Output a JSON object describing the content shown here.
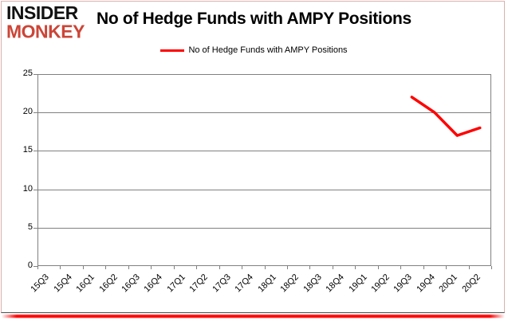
{
  "logo": {
    "line1": "INSIDER",
    "line2": "MONKEY",
    "color_line1": "#111111",
    "color_line2": "#cc4537"
  },
  "header": {
    "title": "No of Hedge Funds with AMPY Positions"
  },
  "legend": {
    "label": "No of Hedge Funds with AMPY Positions",
    "color": "#ff0000"
  },
  "chart_data": {
    "type": "line",
    "title": "No of Hedge Funds with AMPY Positions",
    "categories": [
      "15Q3",
      "15Q4",
      "16Q1",
      "16Q2",
      "16Q3",
      "16Q4",
      "17Q1",
      "17Q2",
      "17Q3",
      "17Q4",
      "18Q1",
      "18Q2",
      "18Q3",
      "18Q4",
      "19Q1",
      "19Q2",
      "19Q3",
      "19Q4",
      "20Q1",
      "20Q2"
    ],
    "series": [
      {
        "name": "No of Hedge Funds with AMPY Positions",
        "color": "#ff0000",
        "values": [
          null,
          null,
          null,
          null,
          null,
          null,
          null,
          null,
          null,
          null,
          null,
          null,
          null,
          null,
          null,
          null,
          22,
          20,
          17,
          18
        ]
      }
    ],
    "ylim": [
      0,
      25
    ],
    "yticks": [
      0,
      5,
      10,
      15,
      20,
      25
    ],
    "xlabel": "",
    "ylabel": "",
    "grid": true,
    "legend_position": "top-center"
  },
  "colors": {
    "line_red": "#ff0000",
    "grid_gray": "#808080",
    "axis_text": "#000000",
    "frame_border": "#dbb0ac",
    "bottom_bar_red": "#ff0000"
  }
}
